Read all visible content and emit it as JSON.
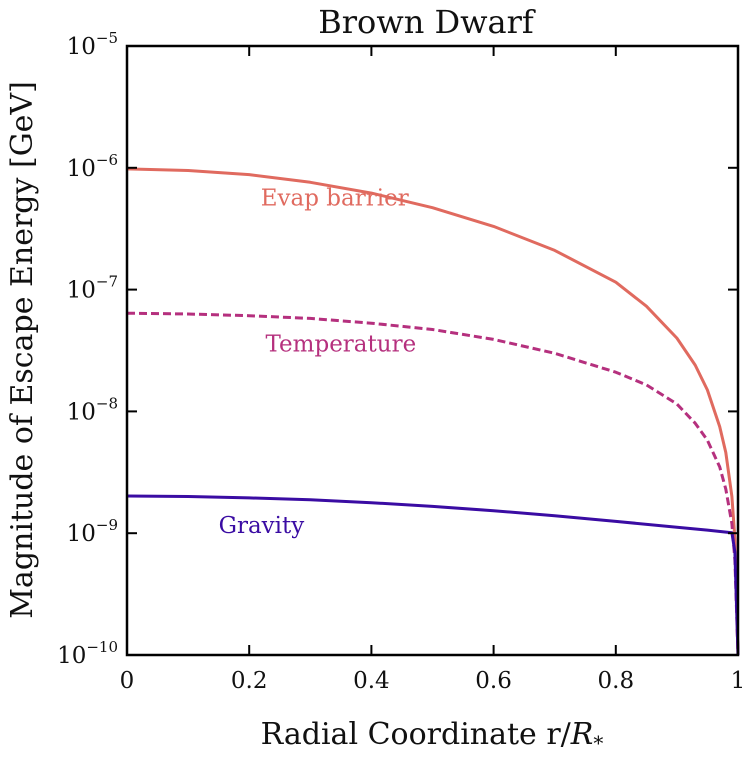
{
  "chart_data": {
    "type": "line",
    "title": "Brown Dwarf",
    "xlabel_main": "Radial Coordinate r/",
    "xlabel_var": "R",
    "xlabel_sub": "*",
    "ylabel": "Magnitude of Escape Energy [GeV]",
    "xlim": [
      0,
      1
    ],
    "ylim": [
      1e-10,
      1e-05
    ],
    "yscale": "log",
    "grid": false,
    "legend": "inline labels",
    "x_ticks": [
      "0",
      "0.2",
      "0.4",
      "0.6",
      "0.8",
      "1"
    ],
    "x_tick_values": [
      0,
      0.2,
      0.4,
      0.6,
      0.8,
      1
    ],
    "y_tick_base": "10",
    "y_tick_exponents": [
      "−10",
      "−9",
      "−8",
      "−7",
      "−6",
      "−5"
    ],
    "y_tick_values": [
      -10,
      -9,
      -8,
      -7,
      -6,
      -5
    ],
    "series": [
      {
        "name": "Evap barrier",
        "color": "#e06a5f",
        "style": "solid",
        "x": [
          0,
          0.1,
          0.2,
          0.3,
          0.4,
          0.5,
          0.6,
          0.7,
          0.8,
          0.85,
          0.9,
          0.93,
          0.95,
          0.97,
          0.98,
          0.99,
          0.995,
          1.0
        ],
        "y": [
          9.8e-07,
          9.5e-07,
          8.8e-07,
          7.6e-07,
          6.2e-07,
          4.7e-07,
          3.3e-07,
          2.1e-07,
          1.15e-07,
          7.3e-08,
          4e-08,
          2.4e-08,
          1.5e-08,
          7.5e-09,
          4.6e-09,
          2e-09,
          9e-10,
          1e-10
        ]
      },
      {
        "name": "Temperature",
        "color": "#b5307e",
        "style": "dashed",
        "x": [
          0,
          0.1,
          0.2,
          0.3,
          0.4,
          0.5,
          0.6,
          0.7,
          0.8,
          0.85,
          0.9,
          0.93,
          0.95,
          0.97,
          0.98,
          0.99,
          0.995,
          1.0
        ],
        "y": [
          6.4e-08,
          6.3e-08,
          6.1e-08,
          5.8e-08,
          5.3e-08,
          4.7e-08,
          3.9e-08,
          3e-08,
          2.1e-08,
          1.65e-08,
          1.15e-08,
          8e-09,
          5.8e-09,
          3.5e-09,
          2.3e-09,
          1.2e-09,
          6e-10,
          1e-10
        ]
      },
      {
        "name": "Gravity",
        "color": "#3a0ca3",
        "style": "solid",
        "x": [
          0,
          0.1,
          0.2,
          0.3,
          0.4,
          0.5,
          0.6,
          0.7,
          0.8,
          0.9,
          0.95,
          0.99,
          0.995,
          1.0
        ],
        "y": [
          2.02e-09,
          2e-09,
          1.95e-09,
          1.88e-09,
          1.78e-09,
          1.66e-09,
          1.53e-09,
          1.39e-09,
          1.25e-09,
          1.12e-09,
          1.06e-09,
          1.01e-09,
          7e-10,
          1e-10
        ]
      }
    ]
  }
}
